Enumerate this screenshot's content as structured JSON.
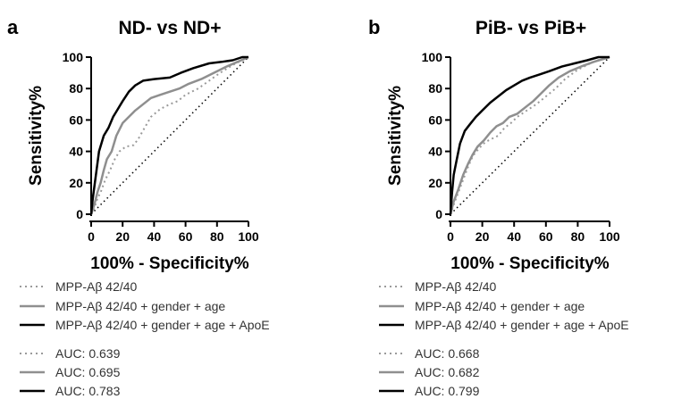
{
  "chart_data": [
    {
      "type": "line",
      "panel_label": "a",
      "title": "ND- vs ND+",
      "xlabel": "100% - Specificity%",
      "ylabel": "Sensitivity%",
      "xlim": [
        0,
        100
      ],
      "ylim": [
        0,
        100
      ],
      "xticks": [
        "0",
        "20",
        "40",
        "60",
        "80",
        "100"
      ],
      "yticks": [
        "0",
        "20",
        "40",
        "60",
        "80",
        "100"
      ],
      "grid": false,
      "reference_diagonal": true,
      "legend_labels": [
        "MPP-Aβ  42/40",
        "MPP-Aβ  42/40 + gender + age",
        "MPP-Aβ  42/40 + gender + age + ApoE"
      ],
      "auc_labels": [
        "AUC: 0.639",
        "AUC: 0.695",
        "AUC: 0.783"
      ],
      "series": [
        {
          "style": "dotted",
          "color": "#9a9a9a",
          "points": [
            [
              0,
              0
            ],
            [
              2,
              4
            ],
            [
              4,
              10
            ],
            [
              6,
              14
            ],
            [
              9,
              22
            ],
            [
              12,
              28
            ],
            [
              15,
              35
            ],
            [
              18,
              40
            ],
            [
              22,
              43
            ],
            [
              27,
              44
            ],
            [
              30,
              48
            ],
            [
              34,
              55
            ],
            [
              38,
              62
            ],
            [
              44,
              67
            ],
            [
              50,
              70
            ],
            [
              55,
              72
            ],
            [
              60,
              76
            ],
            [
              68,
              80
            ],
            [
              75,
              85
            ],
            [
              82,
              90
            ],
            [
              90,
              95
            ],
            [
              100,
              100
            ]
          ]
        },
        {
          "style": "solid",
          "color": "#8f8f8f",
          "points": [
            [
              0,
              0
            ],
            [
              2,
              6
            ],
            [
              4,
              14
            ],
            [
              6,
              20
            ],
            [
              8,
              28
            ],
            [
              10,
              35
            ],
            [
              13,
              40
            ],
            [
              16,
              50
            ],
            [
              20,
              58
            ],
            [
              24,
              62
            ],
            [
              28,
              66
            ],
            [
              33,
              70
            ],
            [
              38,
              74
            ],
            [
              44,
              76
            ],
            [
              50,
              78
            ],
            [
              56,
              80
            ],
            [
              62,
              83
            ],
            [
              70,
              86
            ],
            [
              78,
              90
            ],
            [
              86,
              94
            ],
            [
              93,
              97
            ],
            [
              100,
              100
            ]
          ]
        },
        {
          "style": "solid",
          "color": "#000000",
          "points": [
            [
              0,
              0
            ],
            [
              1,
              10
            ],
            [
              3,
              25
            ],
            [
              5,
              40
            ],
            [
              8,
              50
            ],
            [
              11,
              55
            ],
            [
              14,
              62
            ],
            [
              17,
              67
            ],
            [
              20,
              72
            ],
            [
              24,
              78
            ],
            [
              28,
              82
            ],
            [
              33,
              85
            ],
            [
              40,
              86
            ],
            [
              50,
              87
            ],
            [
              57,
              90
            ],
            [
              65,
              93
            ],
            [
              75,
              96
            ],
            [
              83,
              97
            ],
            [
              90,
              98
            ],
            [
              96,
              100
            ],
            [
              100,
              100
            ]
          ]
        }
      ]
    },
    {
      "type": "line",
      "panel_label": "b",
      "title": "PiB- vs PiB+",
      "xlabel": "100% - Specificity%",
      "ylabel": "Sensitivity%",
      "xlim": [
        0,
        100
      ],
      "ylim": [
        0,
        100
      ],
      "xticks": [
        "0",
        "20",
        "40",
        "60",
        "80",
        "100"
      ],
      "yticks": [
        "0",
        "20",
        "40",
        "60",
        "80",
        "100"
      ],
      "grid": false,
      "reference_diagonal": true,
      "legend_labels": [
        "MPP-Aβ  42/40",
        "MPP-Aβ  42/40 + gender + age",
        "MPP-Aβ  42/40 + gender + age + ApoE"
      ],
      "auc_labels": [
        "AUC: 0.668",
        "AUC: 0.682",
        "AUC: 0.799"
      ],
      "series": [
        {
          "style": "dotted",
          "color": "#9a9a9a",
          "points": [
            [
              0,
              0
            ],
            [
              2,
              6
            ],
            [
              5,
              14
            ],
            [
              8,
              22
            ],
            [
              11,
              30
            ],
            [
              14,
              37
            ],
            [
              18,
              42
            ],
            [
              22,
              46
            ],
            [
              26,
              48
            ],
            [
              30,
              50
            ],
            [
              34,
              55
            ],
            [
              38,
              58
            ],
            [
              42,
              62
            ],
            [
              48,
              66
            ],
            [
              54,
              70
            ],
            [
              60,
              75
            ],
            [
              66,
              80
            ],
            [
              72,
              86
            ],
            [
              80,
              92
            ],
            [
              88,
              96
            ],
            [
              95,
              99
            ],
            [
              100,
              100
            ]
          ]
        },
        {
          "style": "solid",
          "color": "#8f8f8f",
          "points": [
            [
              0,
              0
            ],
            [
              2,
              8
            ],
            [
              5,
              16
            ],
            [
              8,
              25
            ],
            [
              11,
              32
            ],
            [
              14,
              38
            ],
            [
              17,
              43
            ],
            [
              21,
              47
            ],
            [
              25,
              52
            ],
            [
              29,
              56
            ],
            [
              33,
              58
            ],
            [
              37,
              62
            ],
            [
              42,
              64
            ],
            [
              47,
              68
            ],
            [
              52,
              72
            ],
            [
              57,
              77
            ],
            [
              62,
              82
            ],
            [
              68,
              87
            ],
            [
              75,
              91
            ],
            [
              82,
              94
            ],
            [
              90,
              97
            ],
            [
              100,
              100
            ]
          ]
        },
        {
          "style": "solid",
          "color": "#000000",
          "points": [
            [
              0,
              0
            ],
            [
              1,
              14
            ],
            [
              2,
              25
            ],
            [
              4,
              35
            ],
            [
              6,
              45
            ],
            [
              9,
              53
            ],
            [
              12,
              57
            ],
            [
              16,
              62
            ],
            [
              20,
              66
            ],
            [
              25,
              71
            ],
            [
              30,
              75
            ],
            [
              35,
              79
            ],
            [
              40,
              82
            ],
            [
              45,
              85
            ],
            [
              50,
              87
            ],
            [
              56,
              89
            ],
            [
              62,
              91
            ],
            [
              70,
              94
            ],
            [
              78,
              96
            ],
            [
              86,
              98
            ],
            [
              93,
              100
            ],
            [
              100,
              100
            ]
          ]
        }
      ]
    }
  ]
}
